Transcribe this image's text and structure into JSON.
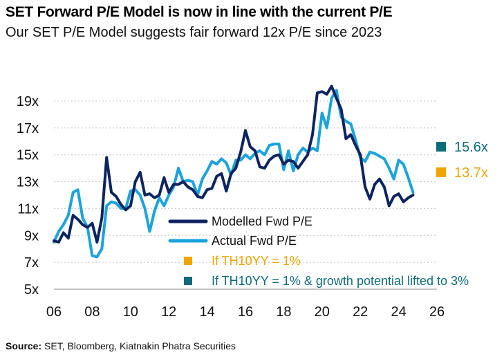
{
  "title": "SET Forward P/E Model is now in line with the current P/E",
  "subtitle": "Our SET P/E Model suggests fair forward 12x P/E since 2023",
  "source": {
    "label": "Source:",
    "text": "SET, Bloomberg, Kiatnakin Phatra Securities"
  },
  "colors": {
    "modelled": "#0d2461",
    "actual": "#1aa3dc",
    "scenario_1pct": "#f0a500",
    "scenario_growth": "#0f6b7a"
  },
  "chart_data": {
    "type": "line",
    "title": "SET Forward P/E Model is now in line with the current P/E",
    "xlabel": "",
    "ylabel": "",
    "xlim": [
      2006,
      2026
    ],
    "ylim": [
      5,
      21
    ],
    "x_ticks": [
      2006,
      2008,
      2010,
      2012,
      2014,
      2016,
      2018,
      2020,
      2022,
      2024,
      2026
    ],
    "x_tick_labels": [
      "06",
      "08",
      "10",
      "12",
      "14",
      "16",
      "18",
      "20",
      "22",
      "24",
      "26"
    ],
    "y_ticks": [
      5,
      7,
      9,
      11,
      13,
      15,
      17,
      19
    ],
    "y_tick_labels": [
      "5x",
      "7x",
      "9x",
      "11x",
      "13x",
      "15x",
      "17x",
      "19x"
    ],
    "grid": "horizontal dotted",
    "legend": "lower middle",
    "series": [
      {
        "name": "Modelled Fwd P/E",
        "x": [
          2006.0,
          2006.25,
          2006.5,
          2006.75,
          2007.0,
          2007.25,
          2007.5,
          2007.75,
          2008.0,
          2008.25,
          2008.5,
          2008.75,
          2009.0,
          2009.25,
          2009.5,
          2009.75,
          2010.0,
          2010.25,
          2010.5,
          2010.75,
          2011.0,
          2011.25,
          2011.5,
          2011.75,
          2012.0,
          2012.25,
          2012.5,
          2012.75,
          2013.0,
          2013.25,
          2013.5,
          2013.75,
          2014.0,
          2014.25,
          2014.5,
          2014.75,
          2015.0,
          2015.25,
          2015.5,
          2015.75,
          2016.0,
          2016.25,
          2016.5,
          2016.75,
          2017.0,
          2017.25,
          2017.5,
          2017.75,
          2018.0,
          2018.25,
          2018.5,
          2018.75,
          2019.0,
          2019.25,
          2019.5,
          2019.75,
          2020.0,
          2020.25,
          2020.5,
          2020.75,
          2021.0,
          2021.25,
          2021.5,
          2021.75,
          2022.0,
          2022.25,
          2022.5,
          2022.75,
          2023.0,
          2023.25,
          2023.5,
          2023.75,
          2024.0,
          2024.25,
          2024.5,
          2024.75
        ],
        "values": [
          8.6,
          8.5,
          9.2,
          8.8,
          10.5,
          10.2,
          9.8,
          9.6,
          9.9,
          8.5,
          10.3,
          14.8,
          12.2,
          11.9,
          11.3,
          10.9,
          11.2,
          13.0,
          13.7,
          12.0,
          12.1,
          11.8,
          12.0,
          13.3,
          12.2,
          12.8,
          12.8,
          13.0,
          12.6,
          12.4,
          11.9,
          11.8,
          12.4,
          12.5,
          13.4,
          13.6,
          12.3,
          13.6,
          14.0,
          15.2,
          16.8,
          15.6,
          15.3,
          14.1,
          14.0,
          14.6,
          14.9,
          15.0,
          14.3,
          14.6,
          14.5,
          14.0,
          14.5,
          15.0,
          16.5,
          19.6,
          19.7,
          19.5,
          20.1,
          19.2,
          18.4,
          16.2,
          16.5,
          15.7,
          15.0,
          12.6,
          11.7,
          12.8,
          13.2,
          12.6,
          11.2,
          11.9,
          12.1,
          11.5,
          11.8,
          12.0
        ]
      },
      {
        "name": "Actual Fwd P/E",
        "x": [
          2006.0,
          2006.25,
          2006.5,
          2006.75,
          2007.0,
          2007.25,
          2007.5,
          2007.75,
          2008.0,
          2008.25,
          2008.5,
          2008.75,
          2009.0,
          2009.25,
          2009.5,
          2009.75,
          2010.0,
          2010.25,
          2010.5,
          2010.75,
          2011.0,
          2011.25,
          2011.5,
          2011.75,
          2012.0,
          2012.25,
          2012.5,
          2012.75,
          2013.0,
          2013.25,
          2013.5,
          2013.75,
          2014.0,
          2014.25,
          2014.5,
          2014.75,
          2015.0,
          2015.25,
          2015.5,
          2015.75,
          2016.0,
          2016.25,
          2016.5,
          2016.75,
          2017.0,
          2017.25,
          2017.5,
          2017.75,
          2018.0,
          2018.25,
          2018.5,
          2018.75,
          2019.0,
          2019.25,
          2019.5,
          2019.75,
          2020.0,
          2020.25,
          2020.5,
          2020.75,
          2021.0,
          2021.25,
          2021.5,
          2021.75,
          2022.0,
          2022.25,
          2022.5,
          2022.75,
          2023.0,
          2023.25,
          2023.5,
          2023.75,
          2024.0,
          2024.25,
          2024.5,
          2024.75
        ],
        "values": [
          8.5,
          9.3,
          9.8,
          10.5,
          12.2,
          12.4,
          10.3,
          9.6,
          7.5,
          7.4,
          8.0,
          11.2,
          11.5,
          11.4,
          11.0,
          11.0,
          12.3,
          12.4,
          12.0,
          11.0,
          9.3,
          10.8,
          11.8,
          11.2,
          12.0,
          12.6,
          14.0,
          13.0,
          13.1,
          13.0,
          12.0,
          13.2,
          13.8,
          14.5,
          14.3,
          14.7,
          14.4,
          13.5,
          14.6,
          14.6,
          15.0,
          14.7,
          15.1,
          15.3,
          15.0,
          15.7,
          15.8,
          15.8,
          13.9,
          15.3,
          13.8,
          15.0,
          15.5,
          15.2,
          15.5,
          15.3,
          18.1,
          17.0,
          19.2,
          19.8,
          17.8,
          17.5,
          17.3,
          16.1,
          14.8,
          14.5,
          15.2,
          15.1,
          14.9,
          14.7,
          14.0,
          13.2,
          14.6,
          14.3,
          13.3,
          12.2
        ]
      }
    ],
    "annotations": [
      {
        "label": "15.6x",
        "y": 15.6,
        "legend_text": "If TH10YY = 1% & growth potential lifted to 3%",
        "color": "#0f6b7a"
      },
      {
        "label": "13.7x",
        "y": 13.7,
        "legend_text": "If TH10YY = 1%",
        "color": "#f0a500"
      }
    ]
  }
}
